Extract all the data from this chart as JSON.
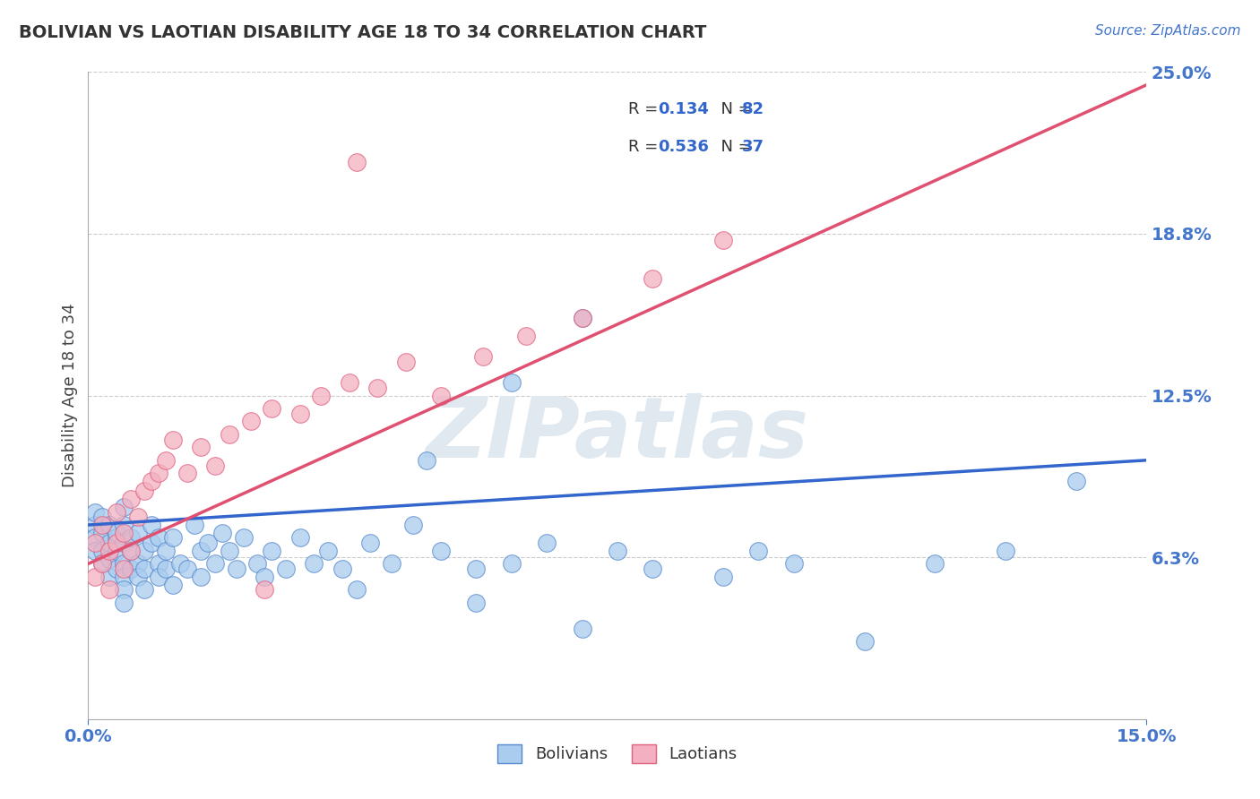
{
  "title": "BOLIVIAN VS LAOTIAN DISABILITY AGE 18 TO 34 CORRELATION CHART",
  "source": "Source: ZipAtlas.com",
  "ylabel": "Disability Age 18 to 34",
  "xlim": [
    0.0,
    0.15
  ],
  "ylim": [
    0.0,
    0.25
  ],
  "ytick_positions": [
    0.0,
    0.0625,
    0.125,
    0.1875,
    0.25
  ],
  "ytick_labels": [
    "",
    "6.3%",
    "12.5%",
    "18.8%",
    "25.0%"
  ],
  "xtick_positions": [
    0.0,
    0.15
  ],
  "xtick_labels": [
    "0.0%",
    "15.0%"
  ],
  "grid_color": "#cccccc",
  "background_color": "#ffffff",
  "bolivian_color": "#aaccee",
  "laotian_color": "#f4b0c0",
  "bolivian_edge_color": "#5588cc",
  "laotian_edge_color": "#e06080",
  "bolivian_line_color": "#3366cc",
  "laotian_line_color": "#e05070",
  "R_bolivian": "0.134",
  "N_bolivian": "82",
  "R_laotian": "0.536",
  "N_laotian": "37",
  "boli_line_x0": 0.0,
  "boli_line_y0": 0.075,
  "boli_line_x1": 0.15,
  "boli_line_y1": 0.1,
  "laot_line_x0": 0.0,
  "laot_line_y0": 0.06,
  "laot_line_x1": 0.15,
  "laot_line_y1": 0.245,
  "watermark_text": "ZIPatlas",
  "figsize": [
    14.06,
    8.92
  ],
  "dpi": 100,
  "boli_x": [
    0.001,
    0.001,
    0.001,
    0.001,
    0.002,
    0.002,
    0.002,
    0.002,
    0.003,
    0.003,
    0.003,
    0.003,
    0.004,
    0.004,
    0.004,
    0.004,
    0.005,
    0.005,
    0.005,
    0.005,
    0.005,
    0.005,
    0.005,
    0.006,
    0.006,
    0.006,
    0.007,
    0.007,
    0.007,
    0.008,
    0.008,
    0.008,
    0.009,
    0.009,
    0.01,
    0.01,
    0.01,
    0.011,
    0.011,
    0.012,
    0.012,
    0.013,
    0.014,
    0.015,
    0.016,
    0.016,
    0.017,
    0.018,
    0.019,
    0.02,
    0.021,
    0.022,
    0.024,
    0.025,
    0.026,
    0.028,
    0.03,
    0.032,
    0.034,
    0.036,
    0.038,
    0.04,
    0.043,
    0.046,
    0.05,
    0.055,
    0.06,
    0.065,
    0.07,
    0.075,
    0.08,
    0.09,
    0.095,
    0.1,
    0.11,
    0.12,
    0.13,
    0.14,
    0.06,
    0.048,
    0.055,
    0.07
  ],
  "boli_y": [
    0.075,
    0.08,
    0.07,
    0.065,
    0.072,
    0.078,
    0.065,
    0.06,
    0.068,
    0.075,
    0.055,
    0.062,
    0.07,
    0.058,
    0.065,
    0.072,
    0.06,
    0.068,
    0.075,
    0.055,
    0.05,
    0.045,
    0.082,
    0.058,
    0.065,
    0.07,
    0.06,
    0.055,
    0.072,
    0.065,
    0.058,
    0.05,
    0.068,
    0.075,
    0.06,
    0.055,
    0.07,
    0.065,
    0.058,
    0.052,
    0.07,
    0.06,
    0.058,
    0.075,
    0.065,
    0.055,
    0.068,
    0.06,
    0.072,
    0.065,
    0.058,
    0.07,
    0.06,
    0.055,
    0.065,
    0.058,
    0.07,
    0.06,
    0.065,
    0.058,
    0.05,
    0.068,
    0.06,
    0.075,
    0.065,
    0.058,
    0.06,
    0.068,
    0.155,
    0.065,
    0.058,
    0.055,
    0.065,
    0.06,
    0.03,
    0.06,
    0.065,
    0.092,
    0.13,
    0.1,
    0.045,
    0.035
  ],
  "laot_x": [
    0.001,
    0.001,
    0.002,
    0.002,
    0.003,
    0.003,
    0.004,
    0.004,
    0.005,
    0.005,
    0.006,
    0.006,
    0.007,
    0.008,
    0.009,
    0.01,
    0.011,
    0.012,
    0.014,
    0.016,
    0.018,
    0.02,
    0.023,
    0.026,
    0.03,
    0.033,
    0.037,
    0.041,
    0.045,
    0.05,
    0.056,
    0.062,
    0.07,
    0.08,
    0.09,
    0.038,
    0.025
  ],
  "laot_y": [
    0.068,
    0.055,
    0.075,
    0.06,
    0.065,
    0.05,
    0.08,
    0.068,
    0.058,
    0.072,
    0.085,
    0.065,
    0.078,
    0.088,
    0.092,
    0.095,
    0.1,
    0.108,
    0.095,
    0.105,
    0.098,
    0.11,
    0.115,
    0.12,
    0.118,
    0.125,
    0.13,
    0.128,
    0.138,
    0.125,
    0.14,
    0.148,
    0.155,
    0.17,
    0.185,
    0.215,
    0.05
  ]
}
